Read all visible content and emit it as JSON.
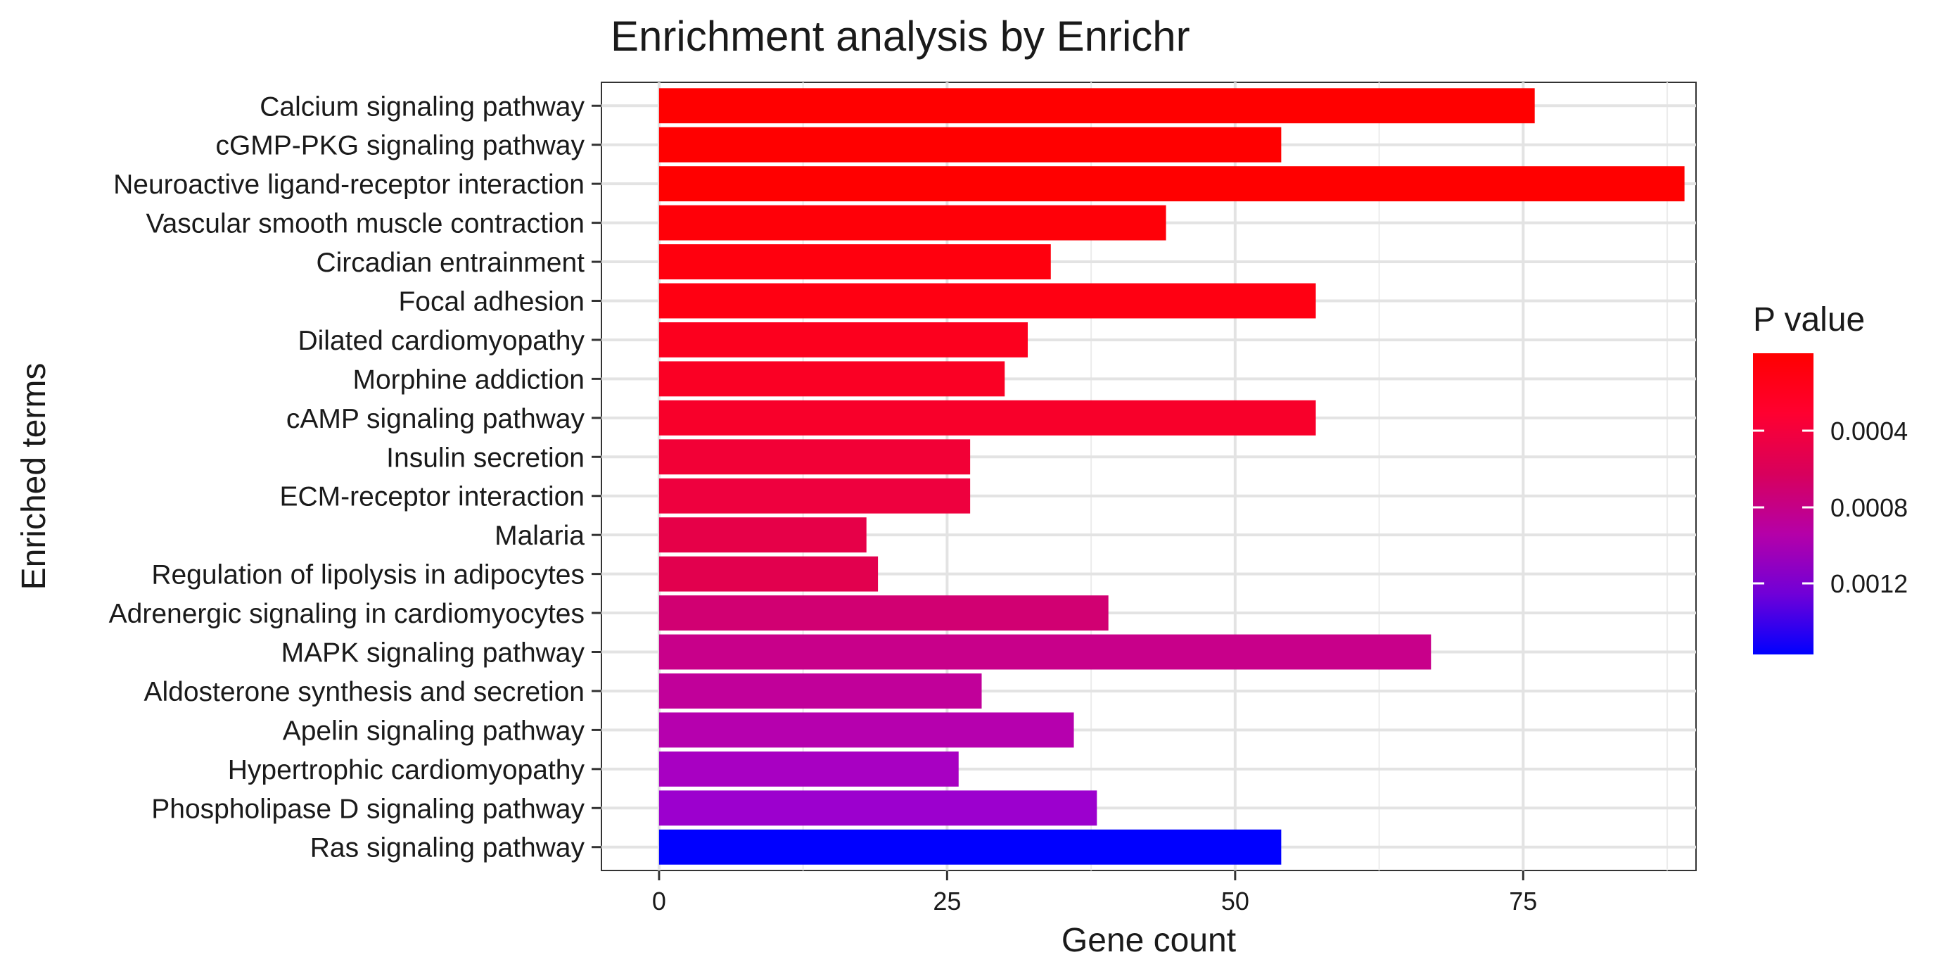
{
  "chart_data": {
    "type": "bar",
    "orientation": "horizontal",
    "title": "Enrichment analysis by Enrichr",
    "xlabel": "Gene count",
    "ylabel": "Enriched terms",
    "xlim": [
      -5,
      90
    ],
    "xticks": [
      0,
      25,
      50,
      75
    ],
    "grid": true,
    "categories": [
      "Calcium signaling pathway",
      "cGMP-PKG signaling pathway",
      "Neuroactive ligand-receptor interaction",
      "Vascular smooth muscle contraction",
      "Circadian entrainment",
      "Focal adhesion",
      "Dilated cardiomyopathy",
      "Morphine addiction",
      "cAMP signaling pathway",
      "Insulin secretion",
      "ECM-receptor interaction",
      "Malaria",
      "Regulation of lipolysis in adipocytes",
      "Adrenergic signaling in cardiomyocytes",
      "MAPK signaling pathway",
      "Aldosterone synthesis and secretion",
      "Apelin signaling pathway",
      "Hypertrophic cardiomyopathy",
      "Phospholipase D signaling pathway",
      "Ras signaling pathway"
    ],
    "values": [
      76,
      54,
      89,
      44,
      34,
      57,
      32,
      30,
      57,
      27,
      27,
      18,
      19,
      39,
      67,
      28,
      36,
      26,
      38,
      54
    ],
    "bar_colors": [
      "#ff0000",
      "#ff0000",
      "#ff0000",
      "#ff0008",
      "#ff000e",
      "#ff0012",
      "#fc001e",
      "#fa0024",
      "#f8002a",
      "#f20036",
      "#ee003e",
      "#e60048",
      "#e2004e",
      "#d10072",
      "#c8008a",
      "#c1009a",
      "#b600ae",
      "#a800c2",
      "#9c00ce",
      "#0000ff"
    ],
    "legend": {
      "title": "P value",
      "position": "right",
      "gradient": [
        "#ff0000",
        "#ff0030",
        "#d8005c",
        "#b500a8",
        "#7000d8",
        "#0000ff"
      ],
      "labels": [
        "0.0004",
        "0.0008",
        "0.0012"
      ]
    }
  }
}
